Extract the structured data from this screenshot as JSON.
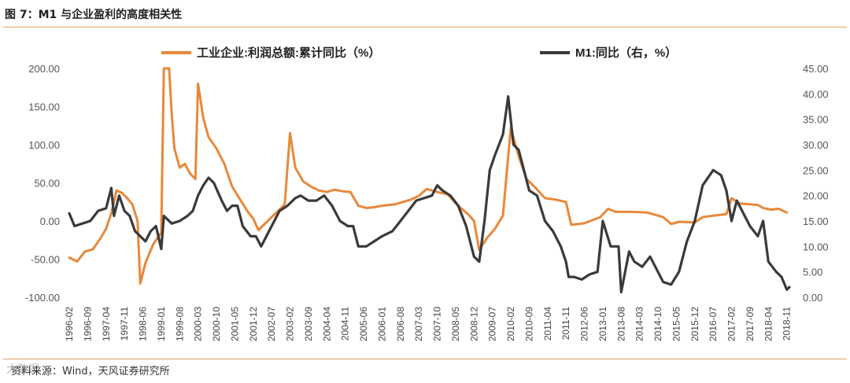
{
  "header": {
    "title": "图 7：M1 与企业盈利的高度相关性"
  },
  "footer": {
    "source": "资料来源：Wind，天风证券研究所",
    "watermark": "大数据"
  },
  "colors": {
    "profit": "#e8883a",
    "m1": "#3a3a3a",
    "rule": "#e0a060"
  },
  "chart_data": {
    "type": "line",
    "legend_placement": "top",
    "grid": false,
    "y_left": {
      "range": [
        -100,
        200
      ],
      "ticks": [
        "200.00",
        "150.00",
        "100.00",
        "50.00",
        "0.00",
        "-50.00",
        "-100.00"
      ]
    },
    "y_right": {
      "range": [
        0,
        45
      ],
      "ticks": [
        "45.00",
        "40.00",
        "35.00",
        "30.00",
        "25.00",
        "20.00",
        "15.00",
        "10.00",
        "5.00",
        "0.00"
      ]
    },
    "x_tick_labels": [
      "1996-02",
      "1996-09",
      "1997-04",
      "1997-11",
      "1998-06",
      "1999-01",
      "1999-08",
      "2000-03",
      "2000-10",
      "2001-05",
      "2001-12",
      "2002-07",
      "2003-02",
      "2003-09",
      "2004-04",
      "2004-11",
      "2005-06",
      "2006-01",
      "2006-08",
      "2007-03",
      "2007-10",
      "2008-05",
      "2008-12",
      "2009-07",
      "2010-02",
      "2010-09",
      "2011-04",
      "2011-11",
      "2012-06",
      "2013-01",
      "2013-08",
      "2014-03",
      "2014-10",
      "2015-05",
      "2015-12",
      "2016-07",
      "2017-02",
      "2017-09",
      "2018-04",
      "2018-11"
    ],
    "series": [
      {
        "name": "工业企业:利润总额:累计同比（%）",
        "axis": "left",
        "points": [
          [
            "1996-02",
            -48
          ],
          [
            "1996-05",
            -53
          ],
          [
            "1996-08",
            -40
          ],
          [
            "1996-11",
            -37
          ],
          [
            "1997-02",
            -22
          ],
          [
            "1997-04",
            -10
          ],
          [
            "1997-06",
            10
          ],
          [
            "1997-08",
            40
          ],
          [
            "1997-10",
            37
          ],
          [
            "1997-12",
            30
          ],
          [
            "1998-02",
            22
          ],
          [
            "1998-04",
            0
          ],
          [
            "1998-05",
            -82
          ],
          [
            "1998-07",
            -55
          ],
          [
            "1998-10",
            -30
          ],
          [
            "1999-01",
            -15
          ],
          [
            "1999-02",
            200
          ],
          [
            "1999-03",
            200
          ],
          [
            "1999-04",
            200
          ],
          [
            "1999-05",
            140
          ],
          [
            "1999-06",
            95
          ],
          [
            "1999-08",
            70
          ],
          [
            "1999-10",
            75
          ],
          [
            "1999-12",
            62
          ],
          [
            "2000-02",
            55
          ],
          [
            "2000-03",
            180
          ],
          [
            "2000-05",
            135
          ],
          [
            "2000-07",
            110
          ],
          [
            "2000-10",
            95
          ],
          [
            "2001-01",
            75
          ],
          [
            "2001-04",
            45
          ],
          [
            "2001-07",
            28
          ],
          [
            "2001-10",
            12
          ],
          [
            "2001-12",
            3
          ],
          [
            "2002-02",
            -12
          ],
          [
            "2002-04",
            -5
          ],
          [
            "2002-07",
            5
          ],
          [
            "2002-10",
            15
          ],
          [
            "2002-12",
            22
          ],
          [
            "2003-02",
            115
          ],
          [
            "2003-04",
            70
          ],
          [
            "2003-07",
            52
          ],
          [
            "2003-10",
            45
          ],
          [
            "2004-01",
            40
          ],
          [
            "2004-04",
            38
          ],
          [
            "2004-07",
            41
          ],
          [
            "2004-10",
            39
          ],
          [
            "2005-01",
            38
          ],
          [
            "2005-04",
            20
          ],
          [
            "2005-07",
            17
          ],
          [
            "2005-10",
            18
          ],
          [
            "2006-01",
            20
          ],
          [
            "2006-06",
            22
          ],
          [
            "2006-12",
            28
          ],
          [
            "2007-03",
            33
          ],
          [
            "2007-06",
            42
          ],
          [
            "2007-10",
            38
          ],
          [
            "2008-02",
            35
          ],
          [
            "2008-06",
            20
          ],
          [
            "2008-10",
            8
          ],
          [
            "2008-12",
            0
          ],
          [
            "2009-02",
            -38
          ],
          [
            "2009-05",
            -22
          ],
          [
            "2009-08",
            -10
          ],
          [
            "2009-11",
            7
          ],
          [
            "2010-02",
            122
          ],
          [
            "2010-05",
            85
          ],
          [
            "2010-08",
            55
          ],
          [
            "2010-11",
            45
          ],
          [
            "2011-03",
            30
          ],
          [
            "2011-07",
            28
          ],
          [
            "2011-11",
            25
          ],
          [
            "2012-01",
            -5
          ],
          [
            "2012-06",
            -3
          ],
          [
            "2012-12",
            5
          ],
          [
            "2013-03",
            16
          ],
          [
            "2013-06",
            12
          ],
          [
            "2013-12",
            12
          ],
          [
            "2014-06",
            11
          ],
          [
            "2014-12",
            5
          ],
          [
            "2015-03",
            -4
          ],
          [
            "2015-06",
            -1
          ],
          [
            "2015-12",
            -2
          ],
          [
            "2016-03",
            5
          ],
          [
            "2016-07",
            7
          ],
          [
            "2016-12",
            9
          ],
          [
            "2017-02",
            30
          ],
          [
            "2017-05",
            23
          ],
          [
            "2017-09",
            22
          ],
          [
            "2017-12",
            21
          ],
          [
            "2018-02",
            17
          ],
          [
            "2018-05",
            15
          ],
          [
            "2018-08",
            16
          ],
          [
            "2018-11",
            11
          ]
        ]
      },
      {
        "name": "M1:同比（右，%）",
        "axis": "right",
        "points": [
          [
            "1996-02",
            16.5
          ],
          [
            "1996-04",
            14
          ],
          [
            "1996-07",
            14.5
          ],
          [
            "1996-10",
            15
          ],
          [
            "1997-01",
            17
          ],
          [
            "1997-04",
            17.5
          ],
          [
            "1997-06",
            21.5
          ],
          [
            "1997-07",
            16
          ],
          [
            "1997-09",
            20
          ],
          [
            "1997-11",
            17
          ],
          [
            "1998-01",
            16
          ],
          [
            "1998-03",
            13
          ],
          [
            "1998-05",
            12
          ],
          [
            "1998-07",
            11
          ],
          [
            "1998-09",
            13
          ],
          [
            "1998-11",
            14
          ],
          [
            "1999-01",
            9.5
          ],
          [
            "1999-02",
            16
          ],
          [
            "1999-05",
            14.5
          ],
          [
            "1999-08",
            15
          ],
          [
            "1999-11",
            16
          ],
          [
            "2000-01",
            17
          ],
          [
            "2000-03",
            20
          ],
          [
            "2000-05",
            22
          ],
          [
            "2000-07",
            23.5
          ],
          [
            "2000-09",
            22.5
          ],
          [
            "2000-12",
            19
          ],
          [
            "2001-02",
            17
          ],
          [
            "2001-04",
            18
          ],
          [
            "2001-06",
            18
          ],
          [
            "2001-08",
            14
          ],
          [
            "2001-11",
            12
          ],
          [
            "2002-01",
            12
          ],
          [
            "2002-03",
            10
          ],
          [
            "2002-05",
            12
          ],
          [
            "2002-08",
            15
          ],
          [
            "2002-10",
            17
          ],
          [
            "2003-01",
            18
          ],
          [
            "2003-04",
            19.5
          ],
          [
            "2003-06",
            20
          ],
          [
            "2003-09",
            19
          ],
          [
            "2003-12",
            19
          ],
          [
            "2004-03",
            20
          ],
          [
            "2004-06",
            18
          ],
          [
            "2004-09",
            15
          ],
          [
            "2004-12",
            14
          ],
          [
            "2005-02",
            14
          ],
          [
            "2005-04",
            10
          ],
          [
            "2005-07",
            10
          ],
          [
            "2005-10",
            11
          ],
          [
            "2006-01",
            12
          ],
          [
            "2006-05",
            13
          ],
          [
            "2006-08",
            15
          ],
          [
            "2006-11",
            17
          ],
          [
            "2007-02",
            19
          ],
          [
            "2007-05",
            19.5
          ],
          [
            "2007-08",
            20
          ],
          [
            "2007-10",
            22
          ],
          [
            "2007-12",
            21
          ],
          [
            "2008-03",
            20
          ],
          [
            "2008-06",
            18
          ],
          [
            "2008-09",
            14
          ],
          [
            "2008-12",
            8
          ],
          [
            "2009-02",
            7
          ],
          [
            "2009-04",
            15
          ],
          [
            "2009-06",
            25
          ],
          [
            "2009-08",
            28
          ],
          [
            "2009-11",
            32
          ],
          [
            "2010-01",
            39.5
          ],
          [
            "2010-03",
            30
          ],
          [
            "2010-05",
            29
          ],
          [
            "2010-07",
            25
          ],
          [
            "2010-09",
            21
          ],
          [
            "2010-12",
            20
          ],
          [
            "2011-03",
            15
          ],
          [
            "2011-06",
            13
          ],
          [
            "2011-09",
            10
          ],
          [
            "2011-11",
            7
          ],
          [
            "2011-12",
            4
          ],
          [
            "2012-02",
            4
          ],
          [
            "2012-05",
            3.5
          ],
          [
            "2012-08",
            4.5
          ],
          [
            "2012-11",
            5
          ],
          [
            "2013-01",
            15
          ],
          [
            "2013-04",
            10
          ],
          [
            "2013-07",
            10
          ],
          [
            "2013-08",
            1
          ],
          [
            "2013-11",
            9
          ],
          [
            "2014-01",
            7
          ],
          [
            "2014-04",
            6
          ],
          [
            "2014-07",
            8
          ],
          [
            "2014-10",
            5
          ],
          [
            "2014-12",
            3
          ],
          [
            "2015-03",
            2.5
          ],
          [
            "2015-06",
            5
          ],
          [
            "2015-09",
            11
          ],
          [
            "2015-12",
            15
          ],
          [
            "2016-03",
            22
          ],
          [
            "2016-07",
            25
          ],
          [
            "2016-10",
            24
          ],
          [
            "2016-12",
            21
          ],
          [
            "2017-02",
            15
          ],
          [
            "2017-04",
            19
          ],
          [
            "2017-06",
            17
          ],
          [
            "2017-09",
            14
          ],
          [
            "2017-12",
            12
          ],
          [
            "2018-02",
            15
          ],
          [
            "2018-04",
            7
          ],
          [
            "2018-07",
            5
          ],
          [
            "2018-09",
            4
          ],
          [
            "2018-11",
            1.5
          ],
          [
            "2018-12",
            2
          ]
        ]
      }
    ]
  }
}
